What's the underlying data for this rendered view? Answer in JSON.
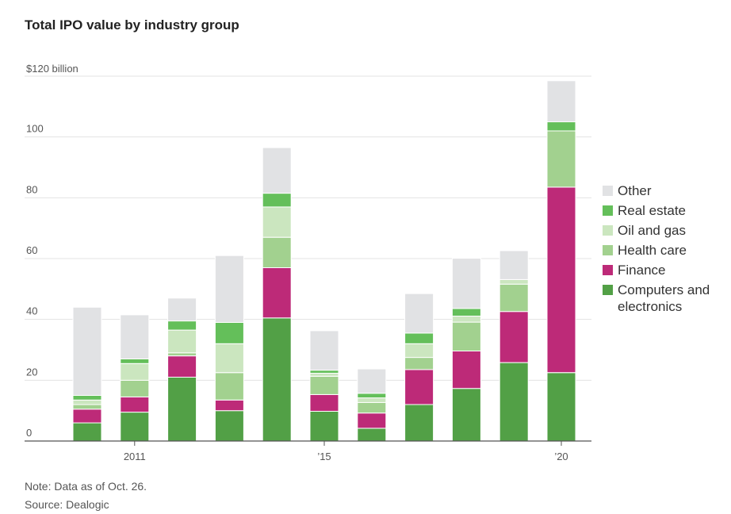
{
  "title": "Total IPO value by industry group",
  "unit_label": "$120 billion",
  "note": "Note: Data as of Oct. 26.",
  "source": "Source: Dealogic",
  "chart_data": {
    "type": "bar",
    "stacked": true,
    "title": "Total IPO value by industry group",
    "categories": [
      "2010",
      "2011",
      "2012",
      "2013",
      "2014",
      "2015",
      "2016",
      "2017",
      "2018",
      "2019",
      "2020"
    ],
    "x_tick_labels": [
      {
        "category": "2011",
        "label": "2011"
      },
      {
        "category": "2015",
        "label": "’15"
      },
      {
        "category": "2020",
        "label": "’20"
      }
    ],
    "y_ticks": [
      {
        "value": 0,
        "label": "0"
      },
      {
        "value": 20,
        "label": "20"
      },
      {
        "value": 40,
        "label": "40"
      },
      {
        "value": 60,
        "label": "60"
      },
      {
        "value": 80,
        "label": "80"
      },
      {
        "value": 100,
        "label": "100"
      },
      {
        "value": 120,
        "label": ""
      }
    ],
    "ylim": [
      0,
      120
    ],
    "grid": true,
    "legend_position": "right",
    "series": [
      {
        "name": "Computers and electronics",
        "color": "#52a046",
        "values": [
          6,
          9.5,
          21,
          10,
          40.5,
          9.8,
          4.2,
          12,
          17.3,
          25.8,
          22.5
        ]
      },
      {
        "name": "Finance",
        "color": "#bd2a78",
        "values": [
          4.5,
          5,
          7,
          3.5,
          16.5,
          5.5,
          5,
          11.5,
          12.3,
          16.8,
          61
        ]
      },
      {
        "name": "Health care",
        "color": "#a2d18f",
        "values": [
          1.5,
          5.5,
          1,
          9,
          10,
          6,
          3.5,
          4,
          9.5,
          9,
          18.5
        ]
      },
      {
        "name": "Oil and gas",
        "color": "#cbe6bf",
        "values": [
          1.5,
          5.5,
          7.5,
          9.5,
          10,
          1,
          1.5,
          4.5,
          2,
          1.5,
          0
        ]
      },
      {
        "name": "Real estate",
        "color": "#64bf5a",
        "values": [
          1.5,
          1.5,
          3,
          7,
          4.5,
          1,
          1.5,
          3.5,
          2.5,
          0,
          3
        ]
      },
      {
        "name": "Other",
        "color": "#e1e2e4",
        "values": [
          29,
          14.5,
          7.5,
          22,
          15,
          13,
          8,
          13,
          16.5,
          9.5,
          13.5
        ]
      }
    ],
    "legend_order": [
      "Other",
      "Real estate",
      "Oil and gas",
      "Health care",
      "Finance",
      "Computers and electronics"
    ]
  }
}
